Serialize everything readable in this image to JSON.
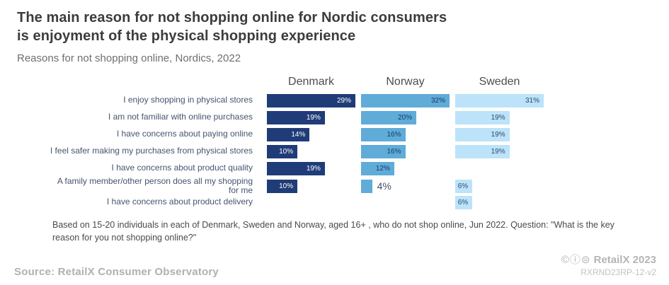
{
  "header": {
    "title_lines": [
      "The main reason for not shopping online for Nordic consumers",
      "is enjoyment of the physical shopping experience"
    ],
    "subtitle": "Reasons for not shopping online, Nordics, 2022"
  },
  "chart_data": {
    "type": "bar",
    "orientation": "horizontal",
    "title": "Reasons for not shopping online, Nordics, 2022",
    "value_suffix": "%",
    "scaling": "per-column-max",
    "legend_position": "column-headers",
    "categories": [
      "I enjoy shopping in physical stores",
      "I am not familiar with online purchases",
      "I have concerns about paying online",
      "I feel safer making my purchases from physical stores",
      "I have concerns about product quality",
      "A family member/other person does all my shopping for me",
      "I have concerns about product delivery"
    ],
    "series": [
      {
        "name": "Denmark",
        "color": "#1f3c78",
        "value_label_color": "#ffffff",
        "values": [
          29,
          19,
          14,
          10,
          19,
          10,
          null
        ]
      },
      {
        "name": "Norway",
        "color": "#5facd8",
        "value_label_color": "#1c3867",
        "values": [
          32,
          20,
          16,
          16,
          12,
          4,
          null
        ]
      },
      {
        "name": "Sweden",
        "color": "#bce3f9",
        "value_label_color": "#2b4a70",
        "values": [
          31,
          19,
          19,
          19,
          null,
          6,
          6
        ]
      }
    ]
  },
  "footnote": "Based on 15-20 individuals in each of Denmark, Sweden and Norway, aged 16+ , who do not shop online, Jun 2022. Question: \"What is the key reason for you not shopping online?\"",
  "footer": {
    "source": "Source: RetailX Consumer Observatory",
    "license_icons": "©ⓘ⊜",
    "brand": "RetailX 2023",
    "ref_code": "RXRND23RP-12-v2"
  }
}
